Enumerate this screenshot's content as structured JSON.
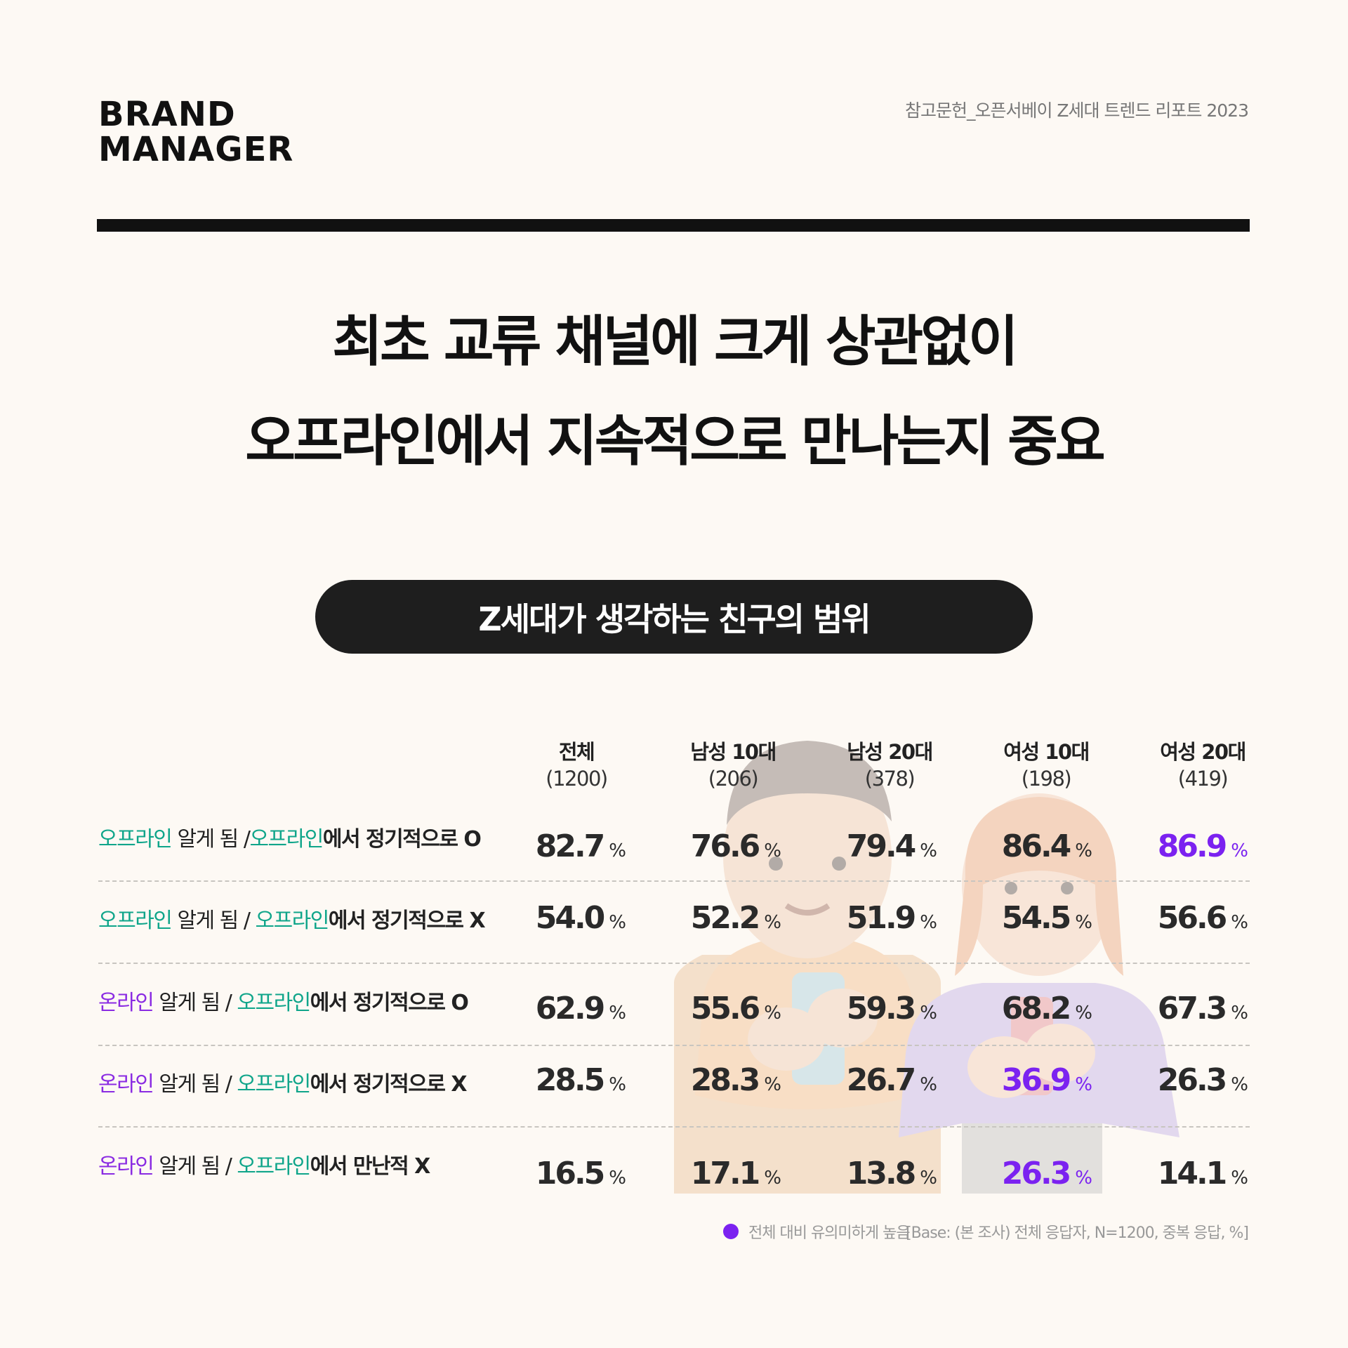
{
  "brand": {
    "line1": "BRAND",
    "line2": "MANAGER"
  },
  "reference": "참고문헌_오픈서베이 Z세대 트렌드 리포트 2023",
  "headline": {
    "line1": "최초 교류 채널에 크게 상관없이",
    "line2": "오프라인에서 지속적으로 만나는지 중요"
  },
  "pill_title": "Z세대가 생각하는 친구의 범위",
  "colors": {
    "green": "#0fa58a",
    "purple": "#7b22f0",
    "dark": "#1e1e1e",
    "background": "#fdf9f4"
  },
  "chart_data": {
    "type": "table",
    "unit": "%",
    "columns": [
      {
        "name": "전체",
        "n": "(1200)"
      },
      {
        "name": "남성 10대",
        "n": "(206)"
      },
      {
        "name": "남성 20대",
        "n": "(378)"
      },
      {
        "name": "여성 10대",
        "n": "(198)"
      },
      {
        "name": "여성 20대",
        "n": "(419)"
      }
    ],
    "rows": [
      {
        "label_parts": [
          {
            "text": "오프라인",
            "style": "g"
          },
          {
            "text": " 알게 됨 /",
            "style": "n"
          },
          {
            "text": "오프라인",
            "style": "g"
          },
          {
            "text": "에서 정기적으로 O",
            "style": "b"
          }
        ],
        "values": [
          "82.7",
          "76.6",
          "79.4",
          "86.4",
          "86.9"
        ],
        "highlight": [
          false,
          false,
          false,
          false,
          true
        ]
      },
      {
        "label_parts": [
          {
            "text": "오프라인",
            "style": "g"
          },
          {
            "text": " 알게 됨 / ",
            "style": "n"
          },
          {
            "text": "오프라인",
            "style": "g"
          },
          {
            "text": "에서 정기적으로 X",
            "style": "b"
          }
        ],
        "values": [
          "54.0",
          "52.2",
          "51.9",
          "54.5",
          "56.6"
        ],
        "highlight": [
          false,
          false,
          false,
          false,
          false
        ]
      },
      {
        "label_parts": [
          {
            "text": "온라인",
            "style": "p"
          },
          {
            "text": " 알게 됨 / ",
            "style": "n"
          },
          {
            "text": "오프라인",
            "style": "g"
          },
          {
            "text": "에서 정기적으로 O",
            "style": "b"
          }
        ],
        "values": [
          "62.9",
          "55.6",
          "59.3",
          "68.2",
          "67.3"
        ],
        "highlight": [
          false,
          false,
          false,
          false,
          false
        ]
      },
      {
        "label_parts": [
          {
            "text": "온라인",
            "style": "p"
          },
          {
            "text": " 알게 됨 / ",
            "style": "n"
          },
          {
            "text": "오프라인",
            "style": "g"
          },
          {
            "text": "에서 정기적으로 X",
            "style": "b"
          }
        ],
        "values": [
          "28.5",
          "28.3",
          "26.7",
          "36.9",
          "26.3"
        ],
        "highlight": [
          false,
          false,
          false,
          true,
          false
        ]
      },
      {
        "label_parts": [
          {
            "text": "온라인",
            "style": "p"
          },
          {
            "text": " 알게 됨 / ",
            "style": "n"
          },
          {
            "text": "오프라인",
            "style": "g"
          },
          {
            "text": "에서 만난적 X",
            "style": "b"
          }
        ],
        "values": [
          "16.5",
          "17.1",
          "13.8",
          "26.3",
          "14.1"
        ],
        "highlight": [
          false,
          false,
          false,
          true,
          false
        ]
      }
    ],
    "legend": "전체 대비 유의미하게 높음",
    "base_note": "[Base: (본 조사) 전체 응답자, N=1200, 중복 응답, %]"
  }
}
